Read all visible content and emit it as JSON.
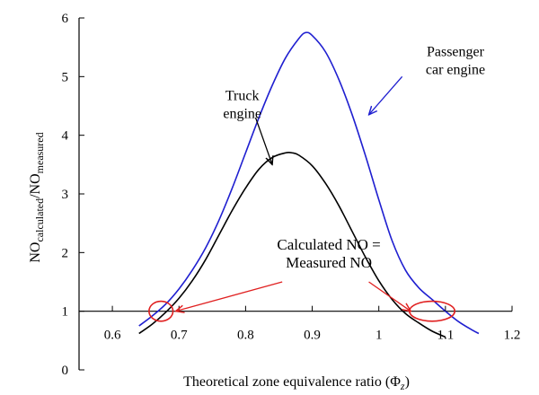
{
  "chart_data": {
    "type": "line",
    "title": "",
    "xlabel": "Theoretical zone equivalence ratio (Φz)",
    "xlabel_parts": [
      "Theoretical zone equivalence ratio (Φ",
      "z",
      ")"
    ],
    "ylabel_parts": [
      "NO",
      "calculated",
      "/NO",
      "measured"
    ],
    "ylabel": "NO calculated / NO measured",
    "xlim": [
      0.55,
      1.2
    ],
    "ylim": [
      0,
      6
    ],
    "x_ticks": [
      0.6,
      0.7,
      0.8,
      0.9,
      1,
      1.1,
      1.2
    ],
    "x_tick_labels": [
      "0.6",
      "0.7",
      "0.8",
      "0.9",
      "1",
      "1.1",
      "1.2"
    ],
    "y_ticks": [
      0,
      1,
      2,
      3,
      4,
      5,
      6
    ],
    "y_tick_labels": [
      "0",
      "1",
      "2",
      "3",
      "4",
      "5",
      "6"
    ],
    "series": [
      {
        "name": "Passenger car engine",
        "color": "#1f1fd0",
        "x": [
          0.64,
          0.66,
          0.68,
          0.7,
          0.72,
          0.74,
          0.76,
          0.78,
          0.8,
          0.82,
          0.84,
          0.86,
          0.88,
          0.89,
          0.9,
          0.92,
          0.94,
          0.96,
          0.98,
          1.0,
          1.02,
          1.04,
          1.06,
          1.08,
          1.1,
          1.12,
          1.14,
          1.15
        ],
        "y": [
          0.75,
          0.92,
          1.12,
          1.38,
          1.7,
          2.08,
          2.55,
          3.1,
          3.7,
          4.3,
          4.85,
          5.32,
          5.65,
          5.75,
          5.7,
          5.42,
          4.95,
          4.35,
          3.65,
          2.9,
          2.2,
          1.7,
          1.4,
          1.2,
          1.0,
          0.82,
          0.68,
          0.62
        ]
      },
      {
        "name": "Truck engine",
        "color": "#000000",
        "x": [
          0.64,
          0.66,
          0.68,
          0.7,
          0.72,
          0.74,
          0.76,
          0.78,
          0.8,
          0.82,
          0.84,
          0.86,
          0.87,
          0.88,
          0.9,
          0.92,
          0.94,
          0.96,
          0.98,
          1.0,
          1.02,
          1.04,
          1.06,
          1.08,
          1.1
        ],
        "y": [
          0.62,
          0.78,
          0.98,
          1.22,
          1.52,
          1.88,
          2.3,
          2.72,
          3.1,
          3.42,
          3.62,
          3.7,
          3.7,
          3.66,
          3.48,
          3.18,
          2.8,
          2.36,
          1.92,
          1.52,
          1.2,
          0.96,
          0.8,
          0.66,
          0.56
        ]
      }
    ],
    "annotations": [
      {
        "id": "truck",
        "lines": [
          "Truck",
          "engine"
        ],
        "text_at": [
          0.795,
          4.6
        ],
        "arrow_from": [
          0.815,
          4.3
        ],
        "arrow_to": [
          0.84,
          3.5
        ],
        "color": "#000000"
      },
      {
        "id": "car",
        "lines": [
          "Passenger",
          "car engine"
        ],
        "text_at": [
          1.115,
          5.35
        ],
        "arrow_from": [
          1.035,
          5.0
        ],
        "arrow_to": [
          0.985,
          4.35
        ],
        "color": "#1f1fd0"
      },
      {
        "id": "equal",
        "lines": [
          "Calculated NO =",
          "Measured NO"
        ],
        "text_at": [
          0.925,
          2.05
        ],
        "color": "#e02020"
      }
    ],
    "equality_markers": [
      {
        "center": [
          0.673,
          1.0
        ],
        "rx_data": 0.018,
        "ry_data": 0.17
      },
      {
        "center": [
          1.08,
          1.0
        ],
        "rx_data": 0.034,
        "ry_data": 0.17
      }
    ],
    "equality_arrows": [
      {
        "from": [
          0.855,
          1.5
        ],
        "to": [
          0.695,
          1.0
        ]
      },
      {
        "from": [
          0.985,
          1.5
        ],
        "to": [
          1.048,
          1.0
        ]
      }
    ],
    "reference_line_y": 1,
    "reference_line_x_range": [
      0.64,
      1.2
    ]
  }
}
